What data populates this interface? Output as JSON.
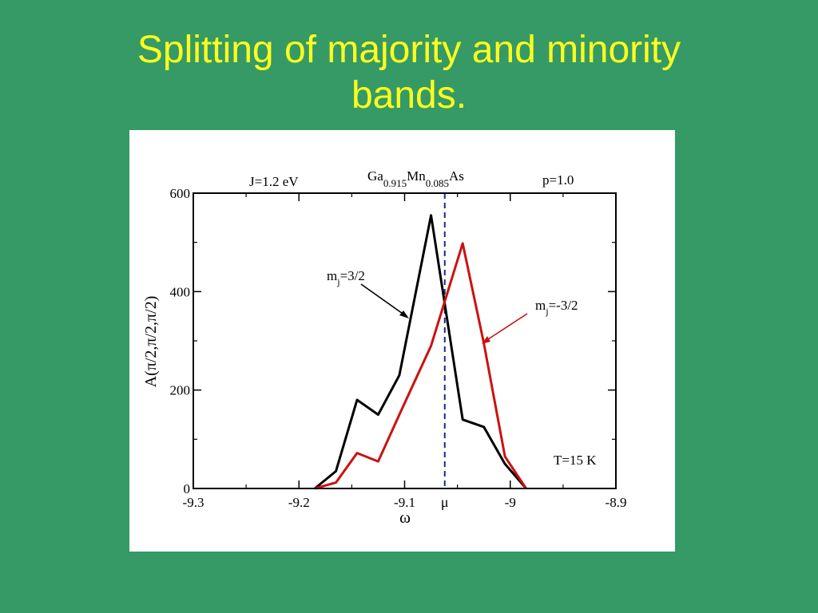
{
  "slide": {
    "title_line1": "Splitting of majority and minority",
    "title_line2": "bands."
  },
  "chart_data": {
    "type": "line",
    "xlabel": "ω",
    "ylabel": "A(π/2,π/2,π/2)",
    "xlim": [
      -9.3,
      -8.9
    ],
    "ylim": [
      0,
      600
    ],
    "x_ticks": [
      "-9.3",
      "-9.2",
      "-9.1",
      "-9",
      "-8.9"
    ],
    "y_ticks": [
      "0",
      "200",
      "400",
      "600"
    ],
    "mu_label": "μ",
    "mu_value": -9.062,
    "header_left": "J=1.2 eV",
    "header_right": "p=1.0",
    "compound": {
      "parts": [
        "Ga",
        "0.915",
        "Mn",
        "0.085",
        "As"
      ]
    },
    "temperature_label": "T=15 K",
    "series": [
      {
        "label_main": "m",
        "label_sub": "j",
        "label_rest": "=3/2",
        "color": "#000000",
        "x": [
          -9.185,
          -9.165,
          -9.145,
          -9.125,
          -9.105,
          -9.075,
          -9.045,
          -9.025,
          -9.005,
          -8.985
        ],
        "y": [
          0,
          35,
          180,
          150,
          230,
          555,
          140,
          125,
          50,
          0
        ]
      },
      {
        "label_main": "m",
        "label_sub": "j",
        "label_rest": "=-3/2",
        "color": "#cc1111",
        "x": [
          -9.185,
          -9.165,
          -9.145,
          -9.125,
          -9.105,
          -9.075,
          -9.045,
          -9.025,
          -9.005,
          -8.985
        ],
        "y": [
          0,
          12,
          72,
          55,
          150,
          290,
          498,
          295,
          65,
          0
        ]
      }
    ]
  }
}
